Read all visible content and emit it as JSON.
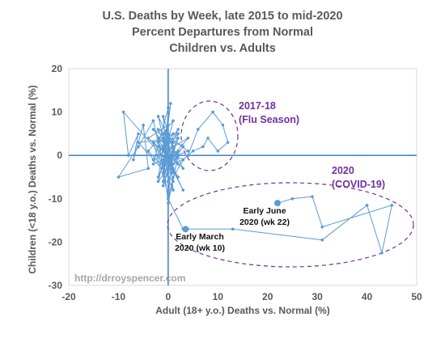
{
  "chart_data": {
    "type": "scatter",
    "title": [
      "U.S. Deaths by Week, late 2015 to mid-2020",
      "Percent Departures from Normal",
      "Children vs. Adults"
    ],
    "xlabel": "Adult (18+ y.o.) Deaths vs. Normal (%)",
    "ylabel": "Children (<18 y.o.) Deaths vs. Normal (%)",
    "xlim": [
      -20,
      50
    ],
    "ylim": [
      -30,
      20
    ],
    "xticks": [
      -20,
      -10,
      0,
      10,
      20,
      30,
      40,
      50
    ],
    "yticks": [
      -30,
      -20,
      -10,
      0,
      10,
      20
    ],
    "grid": false,
    "connected": true,
    "series": [
      {
        "color": "#5b9bd5",
        "points": [
          [
            -1,
            2
          ],
          [
            0.5,
            -2
          ],
          [
            -2,
            3
          ],
          [
            1,
            5
          ],
          [
            -3,
            -1
          ],
          [
            2,
            1
          ],
          [
            -1,
            -4
          ],
          [
            0,
            7
          ],
          [
            -4,
            4
          ],
          [
            3,
            -3
          ],
          [
            -2,
            9
          ],
          [
            1,
            -6
          ],
          [
            -6,
            3
          ],
          [
            2,
            4
          ],
          [
            -1,
            -7
          ],
          [
            0,
            11
          ],
          [
            -3,
            -2
          ],
          [
            4,
            1
          ],
          [
            -2,
            6
          ],
          [
            1,
            -3
          ],
          [
            -9,
            10
          ],
          [
            -8,
            0
          ],
          [
            -6,
            5
          ],
          [
            -7,
            -1
          ],
          [
            -5,
            7
          ],
          [
            -4,
            -3
          ],
          [
            -10,
            -5
          ],
          [
            -6,
            2
          ],
          [
            -3,
            8
          ],
          [
            -1,
            -2
          ],
          [
            0.5,
            12
          ],
          [
            -2,
            -5
          ],
          [
            2,
            6
          ],
          [
            -1,
            1
          ],
          [
            3,
            -8
          ],
          [
            -2,
            4
          ],
          [
            0,
            -10
          ],
          [
            1,
            3
          ],
          [
            -3,
            6
          ],
          [
            2,
            -2
          ],
          [
            -1,
            9
          ],
          [
            0,
            -4
          ],
          [
            -4,
            1
          ],
          [
            1,
            8
          ],
          [
            -2,
            -6
          ],
          [
            3,
            2
          ],
          [
            -1,
            5
          ],
          [
            0,
            -1
          ],
          [
            2,
            -5
          ],
          [
            -3,
            3
          ],
          [
            0,
            -9
          ],
          [
            1,
            1
          ],
          [
            -1,
            -3
          ],
          [
            4,
            4
          ],
          [
            -2,
            0
          ],
          [
            1,
            -8
          ],
          [
            0,
            5
          ],
          [
            -1,
            -6
          ],
          [
            2,
            0
          ],
          [
            0,
            -11
          ],
          [
            -1,
            -1
          ],
          [
            1,
            2
          ],
          [
            0,
            -3
          ],
          [
            2,
            5
          ],
          [
            -1,
            1
          ],
          [
            0,
            0
          ],
          [
            1,
            -2
          ],
          [
            3,
            -1
          ],
          [
            -2,
            2
          ],
          [
            0,
            3
          ],
          [
            1,
            -4
          ],
          [
            -1,
            -2
          ],
          [
            2,
            1
          ],
          [
            0,
            -6
          ],
          [
            -1,
            4
          ],
          [
            1,
            0
          ],
          [
            4,
            0
          ],
          [
            6,
            6
          ],
          [
            9,
            10
          ],
          [
            11,
            7
          ],
          [
            12,
            3
          ],
          [
            10,
            1
          ],
          [
            8,
            4
          ],
          [
            7,
            2
          ],
          [
            5,
            1
          ],
          [
            3,
            -1
          ],
          [
            1,
            -5
          ],
          [
            0,
            -10
          ],
          [
            3,
            -17
          ],
          [
            13,
            -17
          ],
          [
            31,
            -19.5
          ],
          [
            40,
            -11.5
          ],
          [
            43,
            -22.5
          ],
          [
            45,
            -11.5
          ],
          [
            31,
            -16.5
          ],
          [
            29,
            -9.5
          ],
          [
            25,
            -10
          ],
          [
            22,
            -11
          ]
        ],
        "highlighted": [
          [
            3.5,
            -17
          ],
          [
            22,
            -11
          ]
        ]
      }
    ],
    "annotations": [
      {
        "text": "2017-18",
        "color": "#7030a0"
      },
      {
        "text": "(Flu Season)",
        "color": "#7030a0"
      },
      {
        "text": "2020",
        "color": "#7030a0"
      },
      {
        "text": "(COVID-19)",
        "color": "#7030a0"
      },
      {
        "text": "Early June",
        "color": "#111111"
      },
      {
        "text": "2020 (wk 22)",
        "color": "#111111"
      },
      {
        "text": "Early March",
        "color": "#111111"
      },
      {
        "text": "2020 (wk 10)",
        "color": "#111111"
      }
    ],
    "watermark": "http://drroyspencer.com"
  }
}
